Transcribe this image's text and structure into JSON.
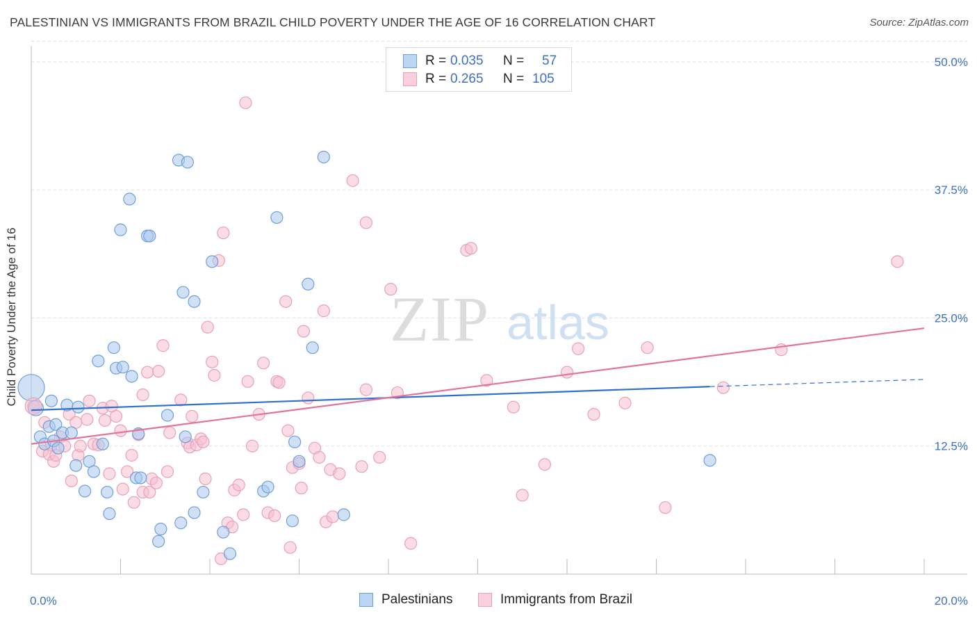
{
  "title": "PALESTINIAN VS IMMIGRANTS FROM BRAZIL CHILD POVERTY UNDER THE AGE OF 16 CORRELATION CHART",
  "source": "Source: ZipAtlas.com",
  "watermark": {
    "zip": "ZIP",
    "atlas": "atlas"
  },
  "legend_top": [
    {
      "r_label": "R =",
      "r_value": "0.035",
      "n_label": "N =",
      "n_value": "57"
    },
    {
      "r_label": "R =",
      "r_value": "0.265",
      "n_label": "N =",
      "n_value": "105"
    }
  ],
  "legend_bottom": [
    {
      "label": "Palestinians"
    },
    {
      "label": "Immigrants from Brazil"
    }
  ],
  "colors": {
    "blue_fill": "#a9c9ee",
    "blue_stroke": "#6f9fd8",
    "blue_line": "#2f6fd0",
    "pink_fill": "#f6bfd0",
    "pink_stroke": "#e9a0b8",
    "pink_line": "#e2739b",
    "tick_label": "#3d6fc4",
    "grid": "#dddddd"
  },
  "chart_data": {
    "type": "scatter",
    "title": "PALESTINIAN VS IMMIGRANTS FROM BRAZIL CHILD POVERTY UNDER THE AGE OF 16 CORRELATION CHART",
    "xlabel": "",
    "ylabel": "Child Poverty Under the Age of 16",
    "xlim": [
      0,
      20
    ],
    "ylim": [
      0,
      52.5
    ],
    "x_tick_labels": [
      {
        "v": 0,
        "t": "0.0%"
      },
      {
        "v": 20,
        "t": "20.0%"
      }
    ],
    "y_tick_labels": [
      {
        "v": 12.5,
        "t": "12.5%"
      },
      {
        "v": 25,
        "t": "25.0%"
      },
      {
        "v": 37.5,
        "t": "37.5%"
      },
      {
        "v": 50,
        "t": "50.0%"
      }
    ],
    "x_minor_ticks": [
      2,
      4,
      6,
      8,
      10,
      12,
      14,
      16,
      18,
      20
    ],
    "grid": true,
    "series": [
      {
        "name": "Palestinians",
        "color": "#a9c9ee",
        "points": [
          [
            0.0,
            18.2
          ],
          [
            0.1,
            16.2
          ],
          [
            0.2,
            13.4
          ],
          [
            0.3,
            12.7
          ],
          [
            0.4,
            14.4
          ],
          [
            0.45,
            16.9
          ],
          [
            0.5,
            13.0
          ],
          [
            0.55,
            14.6
          ],
          [
            0.6,
            12.3
          ],
          [
            0.7,
            13.8
          ],
          [
            0.8,
            16.5
          ],
          [
            0.9,
            13.8
          ],
          [
            1.0,
            10.6
          ],
          [
            1.05,
            16.3
          ],
          [
            1.2,
            8.1
          ],
          [
            1.3,
            11.0
          ],
          [
            1.4,
            10.0
          ],
          [
            1.5,
            20.8
          ],
          [
            1.6,
            12.7
          ],
          [
            1.7,
            8.0
          ],
          [
            1.75,
            5.9
          ],
          [
            1.85,
            22.1
          ],
          [
            1.9,
            20.1
          ],
          [
            2.0,
            33.6
          ],
          [
            2.05,
            20.2
          ],
          [
            2.2,
            36.6
          ],
          [
            2.25,
            19.3
          ],
          [
            2.35,
            9.4
          ],
          [
            2.4,
            13.7
          ],
          [
            2.45,
            9.4
          ],
          [
            2.6,
            33.0
          ],
          [
            2.65,
            33.0
          ],
          [
            2.85,
            3.2
          ],
          [
            2.9,
            4.4
          ],
          [
            3.05,
            15.5
          ],
          [
            3.3,
            40.4
          ],
          [
            3.35,
            5.0
          ],
          [
            3.4,
            27.5
          ],
          [
            3.45,
            13.4
          ],
          [
            3.5,
            40.2
          ],
          [
            3.65,
            26.6
          ],
          [
            3.65,
            6.0
          ],
          [
            3.85,
            8.0
          ],
          [
            4.05,
            30.5
          ],
          [
            4.3,
            4.1
          ],
          [
            4.45,
            2.0
          ],
          [
            5.2,
            8.1
          ],
          [
            5.3,
            8.5
          ],
          [
            5.5,
            34.8
          ],
          [
            5.85,
            5.2
          ],
          [
            5.9,
            12.9
          ],
          [
            6.0,
            11.0
          ],
          [
            6.2,
            28.3
          ],
          [
            6.3,
            22.1
          ],
          [
            6.55,
            40.7
          ],
          [
            7.0,
            5.8
          ],
          [
            15.2,
            11.1
          ]
        ]
      },
      {
        "name": "Immigrants from Brazil",
        "color": "#f6bfd0",
        "points": [
          [
            0.05,
            16.4
          ],
          [
            0.25,
            12.0
          ],
          [
            0.3,
            14.8
          ],
          [
            0.4,
            11.7
          ],
          [
            0.45,
            12.6
          ],
          [
            0.5,
            11.0
          ],
          [
            0.55,
            11.6
          ],
          [
            0.65,
            13.4
          ],
          [
            0.75,
            12.5
          ],
          [
            0.85,
            15.6
          ],
          [
            0.9,
            9.1
          ],
          [
            1.0,
            14.8
          ],
          [
            1.05,
            11.6
          ],
          [
            1.1,
            12.5
          ],
          [
            1.25,
            15.1
          ],
          [
            1.3,
            16.9
          ],
          [
            1.4,
            12.7
          ],
          [
            1.5,
            12.6
          ],
          [
            1.6,
            16.2
          ],
          [
            1.65,
            15.0
          ],
          [
            1.75,
            9.8
          ],
          [
            1.8,
            16.4
          ],
          [
            1.9,
            15.4
          ],
          [
            2.0,
            14.0
          ],
          [
            2.05,
            8.3
          ],
          [
            2.15,
            10.0
          ],
          [
            2.25,
            11.6
          ],
          [
            2.3,
            7.0
          ],
          [
            2.4,
            13.6
          ],
          [
            2.5,
            8.0
          ],
          [
            2.5,
            17.5
          ],
          [
            2.6,
            19.7
          ],
          [
            2.65,
            8.0
          ],
          [
            2.7,
            9.3
          ],
          [
            2.8,
            8.9
          ],
          [
            2.85,
            19.8
          ],
          [
            2.95,
            22.3
          ],
          [
            3.05,
            10.0
          ],
          [
            3.1,
            13.8
          ],
          [
            3.35,
            17.0
          ],
          [
            3.5,
            12.8
          ],
          [
            3.55,
            12.4
          ],
          [
            3.6,
            15.4
          ],
          [
            3.7,
            12.6
          ],
          [
            3.8,
            13.2
          ],
          [
            3.85,
            12.9
          ],
          [
            3.9,
            9.3
          ],
          [
            3.95,
            24.1
          ],
          [
            4.05,
            20.7
          ],
          [
            4.1,
            19.4
          ],
          [
            4.2,
            30.6
          ],
          [
            4.25,
            1.5
          ],
          [
            4.3,
            33.3
          ],
          [
            4.4,
            5.0
          ],
          [
            4.5,
            4.6
          ],
          [
            4.55,
            8.2
          ],
          [
            4.65,
            8.7
          ],
          [
            4.75,
            5.8
          ],
          [
            4.8,
            46.0
          ],
          [
            4.85,
            18.8
          ],
          [
            4.95,
            12.5
          ],
          [
            5.1,
            15.6
          ],
          [
            5.2,
            20.6
          ],
          [
            5.3,
            6.0
          ],
          [
            5.45,
            5.7
          ],
          [
            5.5,
            18.8
          ],
          [
            5.55,
            18.7
          ],
          [
            5.7,
            26.6
          ],
          [
            5.75,
            14.0
          ],
          [
            5.8,
            2.6
          ],
          [
            5.85,
            10.4
          ],
          [
            6.0,
            10.8
          ],
          [
            6.05,
            8.4
          ],
          [
            6.1,
            23.7
          ],
          [
            6.2,
            17.2
          ],
          [
            6.35,
            12.3
          ],
          [
            6.45,
            11.4
          ],
          [
            6.55,
            25.7
          ],
          [
            6.6,
            5.1
          ],
          [
            6.7,
            10.2
          ],
          [
            6.75,
            5.6
          ],
          [
            6.9,
            9.8
          ],
          [
            7.2,
            38.4
          ],
          [
            7.4,
            10.5
          ],
          [
            7.5,
            34.3
          ],
          [
            7.5,
            18.0
          ],
          [
            7.8,
            11.4
          ],
          [
            8.05,
            27.8
          ],
          [
            8.2,
            17.7
          ],
          [
            8.5,
            3.0
          ],
          [
            9.75,
            31.6
          ],
          [
            9.85,
            31.8
          ],
          [
            10.2,
            18.9
          ],
          [
            10.8,
            16.3
          ],
          [
            11.0,
            7.7
          ],
          [
            11.5,
            10.7
          ],
          [
            12.0,
            19.7
          ],
          [
            12.25,
            22.0
          ],
          [
            12.6,
            15.6
          ],
          [
            13.3,
            16.7
          ],
          [
            13.8,
            22.1
          ],
          [
            14.2,
            6.5
          ],
          [
            15.5,
            18.2
          ],
          [
            16.8,
            21.9
          ],
          [
            19.4,
            30.5
          ]
        ]
      }
    ],
    "trend_lines": [
      {
        "series": "Palestinians",
        "x0": 0,
        "y0": 16.0,
        "x1": 15.2,
        "y1": 18.3,
        "dash_x1": 20,
        "dash_y1": 19.0
      },
      {
        "series": "Immigrants from Brazil",
        "x0": 0,
        "y0": 12.7,
        "x1": 20,
        "y1": 24.0
      }
    ]
  }
}
